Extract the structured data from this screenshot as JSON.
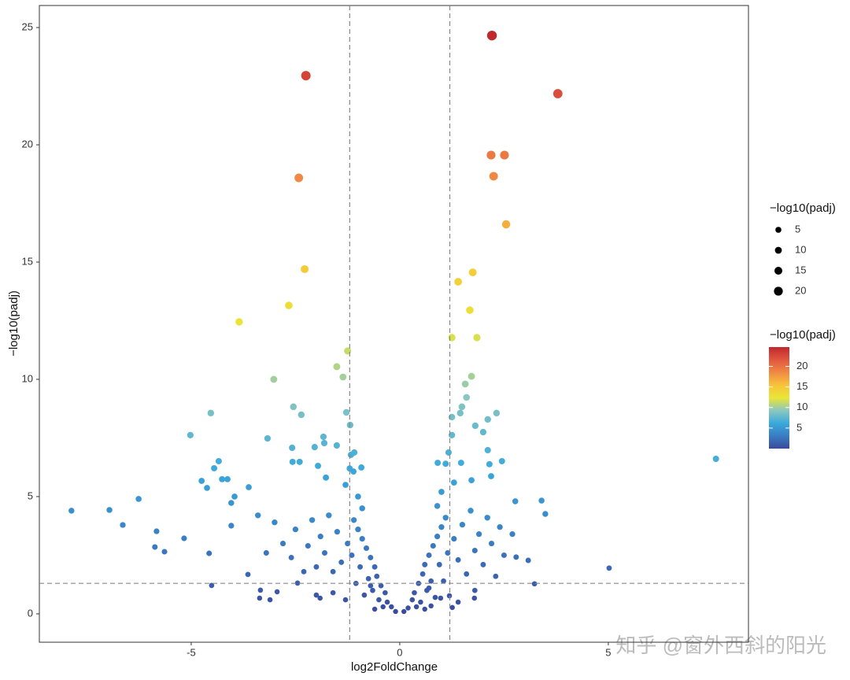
{
  "chart_data": {
    "type": "scatter",
    "x_label": "log2FoldChange",
    "y_label": "−log10(padj)",
    "size_legend_title": "−log10(padj)",
    "size_legend_values": [
      5,
      10,
      15,
      20
    ],
    "color_legend_title": "−log10(padj)",
    "color_ticks": [
      5,
      10,
      15,
      20
    ],
    "color_lim": [
      0,
      24.7
    ],
    "colors": [
      "#3b4a9c",
      "#3a7cc2",
      "#3aa9dc",
      "#8cc7bf",
      "#e9e636",
      "#f8c33a",
      "#f08a45",
      "#e0573f",
      "#c2282c"
    ],
    "xlim": [
      -8.64,
      8.36
    ],
    "ylim": [
      -1.21,
      25.94
    ],
    "xticks": [
      -5,
      0,
      5
    ],
    "yticks": [
      0,
      5,
      10,
      15,
      20,
      25
    ],
    "vlines": [
      -1.2,
      1.2
    ],
    "hline": 1.3,
    "watermark": "知乎 @窗外西斜的阳光",
    "x": [
      -0.1,
      -0.2,
      -0.3,
      -0.35,
      -0.45,
      -0.5,
      -0.55,
      -0.6,
      -0.65,
      -0.7,
      -0.75,
      -0.8,
      -0.85,
      -0.9,
      -0.95,
      -1.0,
      -1.05,
      -1.1,
      -1.15,
      -0.9,
      -1.0,
      -1.25,
      -1.4,
      -1.5,
      -1.6,
      -1.7,
      -1.8,
      -1.9,
      -2.0,
      -2.1,
      -2.2,
      -2.3,
      -2.5,
      -2.6,
      -2.8,
      -3.0,
      -3.2,
      -3.4,
      -1.3,
      -1.2,
      -0.7,
      -0.4,
      -0.6,
      -1.3,
      -1.6,
      -2.0,
      0.1,
      0.2,
      0.3,
      0.35,
      0.45,
      0.5,
      0.55,
      0.6,
      0.65,
      0.7,
      0.75,
      0.8,
      0.85,
      0.9,
      0.95,
      1.0,
      1.05,
      1.1,
      1.15,
      0.9,
      1.0,
      1.3,
      1.4,
      1.5,
      1.6,
      1.7,
      1.8,
      1.9,
      2.0,
      2.1,
      2.2,
      2.4,
      2.5,
      2.7,
      1.3,
      1.1,
      0.7,
      0.4,
      0.6,
      1.4,
      1.8,
      2.3,
      -7.87,
      -6.96,
      -6.64,
      -6.26,
      -5.87,
      -5.83,
      -5.64,
      -5.17,
      -5.02,
      -4.75,
      -4.62,
      -4.57,
      -4.53,
      -4.51,
      -4.45,
      -4.34,
      -4.26,
      -4.13,
      -4.04,
      -4.04,
      -3.96,
      -3.85,
      -3.64,
      -3.62,
      -3.36,
      -3.34,
      -3.17,
      -3.11,
      -3.02,
      -2.94,
      -2.66,
      -2.58,
      -2.57,
      -2.55,
      -2.45,
      -2.42,
      -2.4,
      -2.36,
      -2.28,
      -2.25,
      -2.04,
      -1.96,
      -1.91,
      -1.83,
      -1.81,
      -1.77,
      -1.51,
      -1.51,
      -1.36,
      -1.28,
      -1.25,
      -1.19,
      -1.17,
      -1.11,
      -1.09,
      -0.92,
      0.75,
      0.91,
      0.98,
      1.17,
      1.19,
      1.25,
      1.25,
      1.25,
      1.26,
      1.4,
      1.45,
      1.47,
      1.49,
      1.57,
      1.6,
      1.68,
      1.72,
      1.72,
      1.75,
      1.79,
      1.81,
      1.85,
      2.0,
      2.11,
      2.11,
      2.15,
      2.19,
      2.19,
      2.21,
      2.25,
      2.32,
      2.45,
      2.51,
      2.55,
      2.77,
      2.79,
      3.08,
      3.23,
      3.4,
      3.49,
      3.79,
      5.02,
      7.58
    ],
    "values": [
      0.1,
      0.3,
      0.5,
      0.9,
      1.2,
      0.6,
      1.6,
      2.0,
      1.0,
      2.4,
      1.5,
      2.8,
      0.8,
      3.2,
      2.0,
      3.6,
      1.3,
      4.0,
      2.5,
      4.5,
      5.0,
      3.0,
      2.2,
      3.5,
      1.8,
      4.2,
      2.6,
      3.3,
      2.0,
      4.0,
      2.9,
      1.8,
      3.6,
      2.4,
      3.0,
      3.9,
      2.6,
      4.2,
      5.5,
      6.2,
      1.2,
      0.3,
      0.2,
      0.6,
      0.9,
      0.8,
      0.1,
      0.25,
      0.6,
      0.9,
      1.3,
      0.5,
      1.7,
      2.1,
      1.0,
      2.5,
      1.4,
      2.9,
      0.7,
      3.3,
      2.1,
      3.7,
      1.4,
      4.1,
      2.6,
      4.6,
      5.2,
      3.2,
      2.3,
      3.8,
      1.7,
      4.4,
      2.7,
      3.4,
      2.1,
      4.1,
      3.0,
      3.7,
      2.5,
      3.4,
      5.6,
      6.4,
      1.1,
      0.3,
      0.2,
      0.5,
      1.0,
      1.6,
      4.4,
      4.43,
      3.79,
      4.9,
      2.85,
      3.52,
      2.65,
      3.22,
      7.62,
      5.67,
      5.37,
      2.58,
      8.56,
      1.21,
      6.21,
      6.51,
      5.74,
      5.74,
      4.73,
      3.76,
      5.0,
      12.45,
      1.68,
      5.4,
      0.67,
      1.01,
      7.48,
      0.6,
      10.0,
      0.94,
      13.15,
      7.08,
      6.48,
      8.83,
      1.31,
      18.59,
      6.48,
      8.49,
      14.7,
      22.95,
      7.11,
      6.31,
      0.67,
      7.55,
      7.28,
      5.81,
      10.54,
      7.18,
      10.1,
      8.59,
      11.21,
      8.05,
      6.78,
      6.07,
      6.88,
      6.24,
      0.34,
      6.44,
      0.67,
      6.88,
      0.77,
      11.78,
      8.39,
      7.62,
      0.27,
      14.16,
      8.56,
      6.44,
      8.83,
      9.8,
      9.23,
      12.95,
      10.13,
      5.7,
      14.56,
      0.67,
      8.02,
      11.78,
      7.75,
      8.29,
      6.98,
      6.38,
      19.56,
      5.87,
      24.66,
      18.66,
      8.56,
      6.51,
      19.56,
      16.61,
      4.8,
      2.42,
      2.28,
      1.28,
      4.83,
      4.26,
      22.18,
      1.95,
      6.61
    ]
  }
}
